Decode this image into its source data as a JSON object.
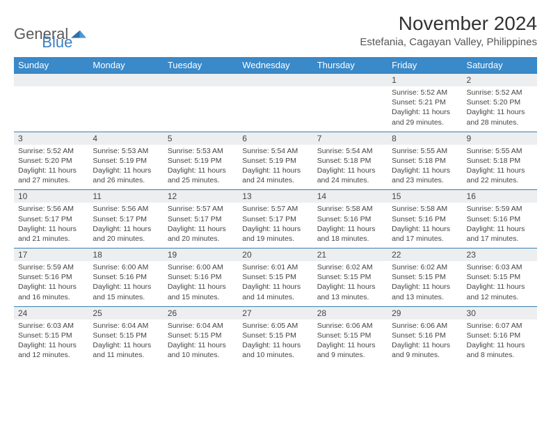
{
  "brand": {
    "part1": "General",
    "part2": "Blue"
  },
  "title": "November 2024",
  "location": "Estefania, Cagayan Valley, Philippines",
  "headers": [
    "Sunday",
    "Monday",
    "Tuesday",
    "Wednesday",
    "Thursday",
    "Friday",
    "Saturday"
  ],
  "colors": {
    "header_bg": "#3a89c9",
    "header_text": "#ffffff",
    "numrow_bg": "#eceef0",
    "row_border": "#3a7fb0",
    "text": "#444444",
    "brand_gray": "#5a5a5a",
    "brand_blue": "#3a7fc4",
    "background": "#ffffff"
  },
  "typography": {
    "title_fontsize": 28,
    "location_fontsize": 15,
    "header_fontsize": 13,
    "daynum_fontsize": 12,
    "detail_fontsize": 10.5
  },
  "weeks": [
    [
      {
        "day": "",
        "sunrise": "",
        "sunset": "",
        "daylight": ""
      },
      {
        "day": "",
        "sunrise": "",
        "sunset": "",
        "daylight": ""
      },
      {
        "day": "",
        "sunrise": "",
        "sunset": "",
        "daylight": ""
      },
      {
        "day": "",
        "sunrise": "",
        "sunset": "",
        "daylight": ""
      },
      {
        "day": "",
        "sunrise": "",
        "sunset": "",
        "daylight": ""
      },
      {
        "day": "1",
        "sunrise": "Sunrise: 5:52 AM",
        "sunset": "Sunset: 5:21 PM",
        "daylight": "Daylight: 11 hours and 29 minutes."
      },
      {
        "day": "2",
        "sunrise": "Sunrise: 5:52 AM",
        "sunset": "Sunset: 5:20 PM",
        "daylight": "Daylight: 11 hours and 28 minutes."
      }
    ],
    [
      {
        "day": "3",
        "sunrise": "Sunrise: 5:52 AM",
        "sunset": "Sunset: 5:20 PM",
        "daylight": "Daylight: 11 hours and 27 minutes."
      },
      {
        "day": "4",
        "sunrise": "Sunrise: 5:53 AM",
        "sunset": "Sunset: 5:19 PM",
        "daylight": "Daylight: 11 hours and 26 minutes."
      },
      {
        "day": "5",
        "sunrise": "Sunrise: 5:53 AM",
        "sunset": "Sunset: 5:19 PM",
        "daylight": "Daylight: 11 hours and 25 minutes."
      },
      {
        "day": "6",
        "sunrise": "Sunrise: 5:54 AM",
        "sunset": "Sunset: 5:19 PM",
        "daylight": "Daylight: 11 hours and 24 minutes."
      },
      {
        "day": "7",
        "sunrise": "Sunrise: 5:54 AM",
        "sunset": "Sunset: 5:18 PM",
        "daylight": "Daylight: 11 hours and 24 minutes."
      },
      {
        "day": "8",
        "sunrise": "Sunrise: 5:55 AM",
        "sunset": "Sunset: 5:18 PM",
        "daylight": "Daylight: 11 hours and 23 minutes."
      },
      {
        "day": "9",
        "sunrise": "Sunrise: 5:55 AM",
        "sunset": "Sunset: 5:18 PM",
        "daylight": "Daylight: 11 hours and 22 minutes."
      }
    ],
    [
      {
        "day": "10",
        "sunrise": "Sunrise: 5:56 AM",
        "sunset": "Sunset: 5:17 PM",
        "daylight": "Daylight: 11 hours and 21 minutes."
      },
      {
        "day": "11",
        "sunrise": "Sunrise: 5:56 AM",
        "sunset": "Sunset: 5:17 PM",
        "daylight": "Daylight: 11 hours and 20 minutes."
      },
      {
        "day": "12",
        "sunrise": "Sunrise: 5:57 AM",
        "sunset": "Sunset: 5:17 PM",
        "daylight": "Daylight: 11 hours and 20 minutes."
      },
      {
        "day": "13",
        "sunrise": "Sunrise: 5:57 AM",
        "sunset": "Sunset: 5:17 PM",
        "daylight": "Daylight: 11 hours and 19 minutes."
      },
      {
        "day": "14",
        "sunrise": "Sunrise: 5:58 AM",
        "sunset": "Sunset: 5:16 PM",
        "daylight": "Daylight: 11 hours and 18 minutes."
      },
      {
        "day": "15",
        "sunrise": "Sunrise: 5:58 AM",
        "sunset": "Sunset: 5:16 PM",
        "daylight": "Daylight: 11 hours and 17 minutes."
      },
      {
        "day": "16",
        "sunrise": "Sunrise: 5:59 AM",
        "sunset": "Sunset: 5:16 PM",
        "daylight": "Daylight: 11 hours and 17 minutes."
      }
    ],
    [
      {
        "day": "17",
        "sunrise": "Sunrise: 5:59 AM",
        "sunset": "Sunset: 5:16 PM",
        "daylight": "Daylight: 11 hours and 16 minutes."
      },
      {
        "day": "18",
        "sunrise": "Sunrise: 6:00 AM",
        "sunset": "Sunset: 5:16 PM",
        "daylight": "Daylight: 11 hours and 15 minutes."
      },
      {
        "day": "19",
        "sunrise": "Sunrise: 6:00 AM",
        "sunset": "Sunset: 5:16 PM",
        "daylight": "Daylight: 11 hours and 15 minutes."
      },
      {
        "day": "20",
        "sunrise": "Sunrise: 6:01 AM",
        "sunset": "Sunset: 5:15 PM",
        "daylight": "Daylight: 11 hours and 14 minutes."
      },
      {
        "day": "21",
        "sunrise": "Sunrise: 6:02 AM",
        "sunset": "Sunset: 5:15 PM",
        "daylight": "Daylight: 11 hours and 13 minutes."
      },
      {
        "day": "22",
        "sunrise": "Sunrise: 6:02 AM",
        "sunset": "Sunset: 5:15 PM",
        "daylight": "Daylight: 11 hours and 13 minutes."
      },
      {
        "day": "23",
        "sunrise": "Sunrise: 6:03 AM",
        "sunset": "Sunset: 5:15 PM",
        "daylight": "Daylight: 11 hours and 12 minutes."
      }
    ],
    [
      {
        "day": "24",
        "sunrise": "Sunrise: 6:03 AM",
        "sunset": "Sunset: 5:15 PM",
        "daylight": "Daylight: 11 hours and 12 minutes."
      },
      {
        "day": "25",
        "sunrise": "Sunrise: 6:04 AM",
        "sunset": "Sunset: 5:15 PM",
        "daylight": "Daylight: 11 hours and 11 minutes."
      },
      {
        "day": "26",
        "sunrise": "Sunrise: 6:04 AM",
        "sunset": "Sunset: 5:15 PM",
        "daylight": "Daylight: 11 hours and 10 minutes."
      },
      {
        "day": "27",
        "sunrise": "Sunrise: 6:05 AM",
        "sunset": "Sunset: 5:15 PM",
        "daylight": "Daylight: 11 hours and 10 minutes."
      },
      {
        "day": "28",
        "sunrise": "Sunrise: 6:06 AM",
        "sunset": "Sunset: 5:15 PM",
        "daylight": "Daylight: 11 hours and 9 minutes."
      },
      {
        "day": "29",
        "sunrise": "Sunrise: 6:06 AM",
        "sunset": "Sunset: 5:16 PM",
        "daylight": "Daylight: 11 hours and 9 minutes."
      },
      {
        "day": "30",
        "sunrise": "Sunrise: 6:07 AM",
        "sunset": "Sunset: 5:16 PM",
        "daylight": "Daylight: 11 hours and 8 minutes."
      }
    ]
  ]
}
